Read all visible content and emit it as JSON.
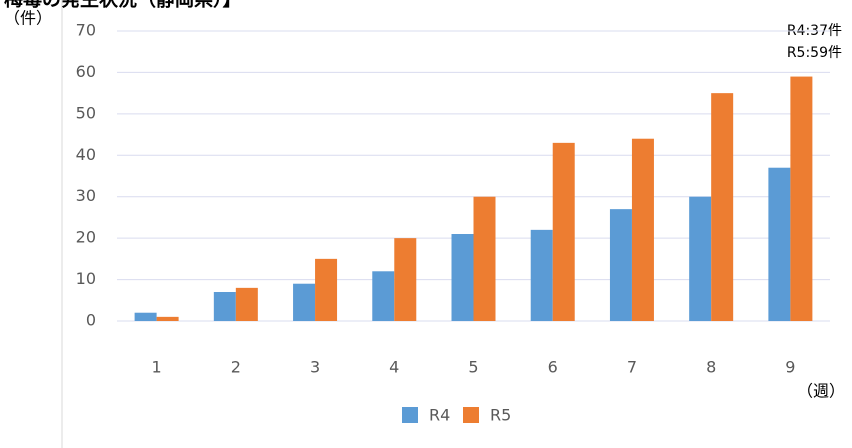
{
  "chart_data": {
    "type": "bar",
    "title": "梅毒の発生状況（静岡県）】",
    "y_label": "（件）",
    "x_label": "（週）",
    "annotations": [
      "R4:37件",
      "R5:59件"
    ],
    "categories": [
      "1",
      "2",
      "3",
      "4",
      "5",
      "6",
      "7",
      "8",
      "9"
    ],
    "series": [
      {
        "name": "R4",
        "color": "#5b9bd5",
        "values": [
          2,
          7,
          9,
          12,
          21,
          22,
          27,
          30,
          37
        ]
      },
      {
        "name": "R5",
        "color": "#ed7d31",
        "values": [
          1,
          8,
          15,
          20,
          30,
          43,
          44,
          55,
          59
        ]
      }
    ],
    "ylim": [
      0,
      70
    ],
    "yticks": [
      0,
      10,
      20,
      30,
      40,
      50,
      60,
      70
    ],
    "grid": true,
    "legend": "bottom"
  }
}
